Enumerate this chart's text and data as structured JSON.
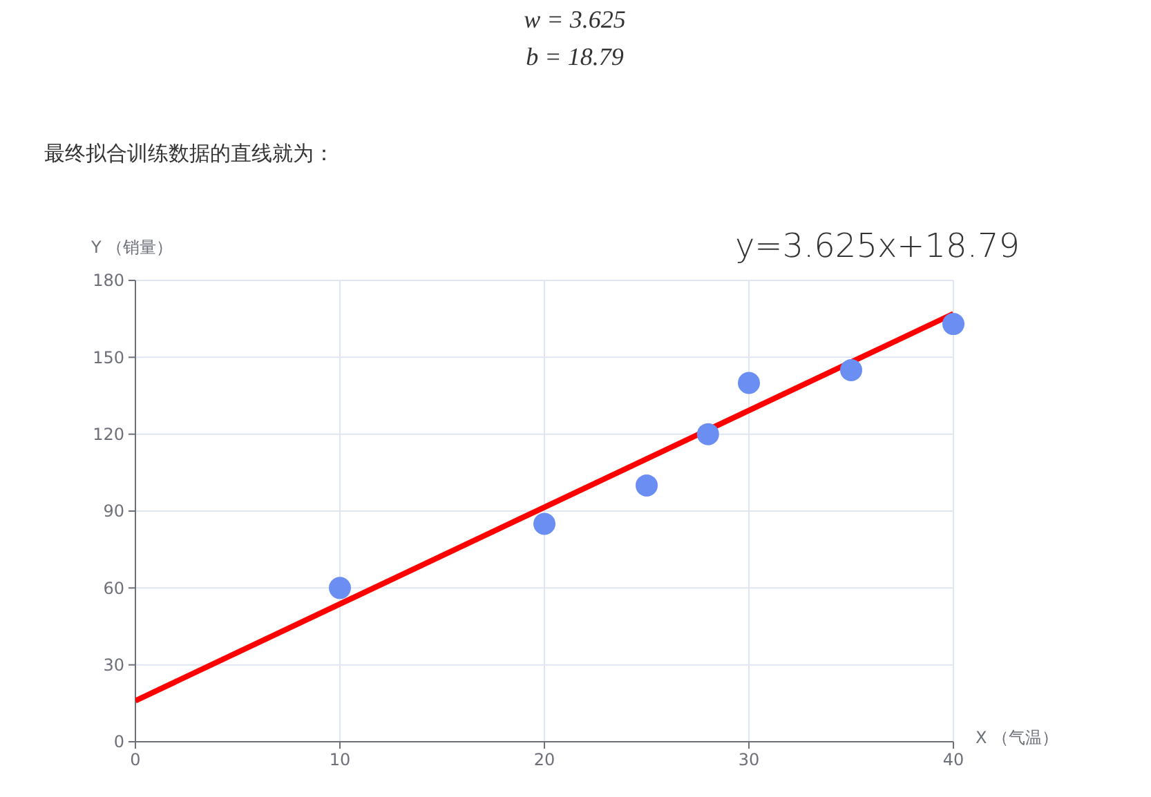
{
  "chart_data": {
    "type": "scatter",
    "xlabel": "X （气温）",
    "ylabel": "Y （销量）",
    "xlim": [
      0,
      40
    ],
    "ylim": [
      0,
      180
    ],
    "xticks": [
      0,
      10,
      20,
      30,
      40
    ],
    "yticks": [
      0,
      30,
      60,
      90,
      120,
      150,
      180
    ],
    "grid": true,
    "marker": "circle",
    "annotations": [
      "w = 3.625",
      "b = 18.79",
      "最终拟合训练数据的直线就为：",
      "y=3.625x+18.79"
    ],
    "series": [
      {
        "color": "#6a8ef2",
        "x": [
          10,
          20,
          25,
          28,
          30,
          35,
          40
        ],
        "values": [
          60,
          85,
          100,
          120,
          140,
          145,
          163
        ]
      },
      {
        "type": "line",
        "color": "#ff0000",
        "x": [
          0,
          40
        ],
        "values": [
          16,
          167
        ],
        "line_style": "solid",
        "marker": "none"
      }
    ]
  }
}
